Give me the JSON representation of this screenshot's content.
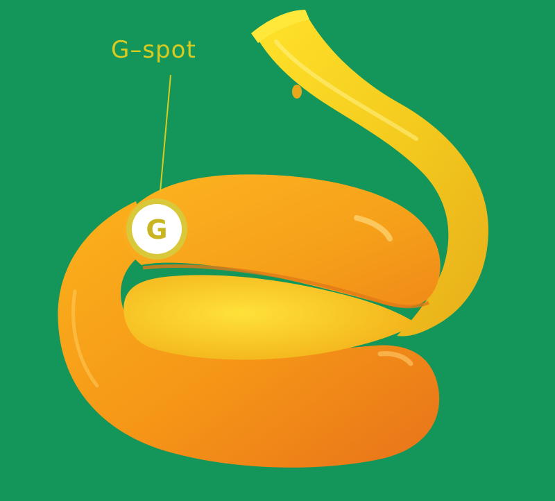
{
  "colors": {
    "background": "#14955A",
    "accent_label": "#D9CB1F",
    "body_orange": "#F59A17",
    "body_yellow": "#F2D21E",
    "marker_ring": "#D9C93A",
    "marker_fill": "#FFFFFF"
  },
  "labels": {
    "callout": "G–spot",
    "marker_letter": "G"
  }
}
